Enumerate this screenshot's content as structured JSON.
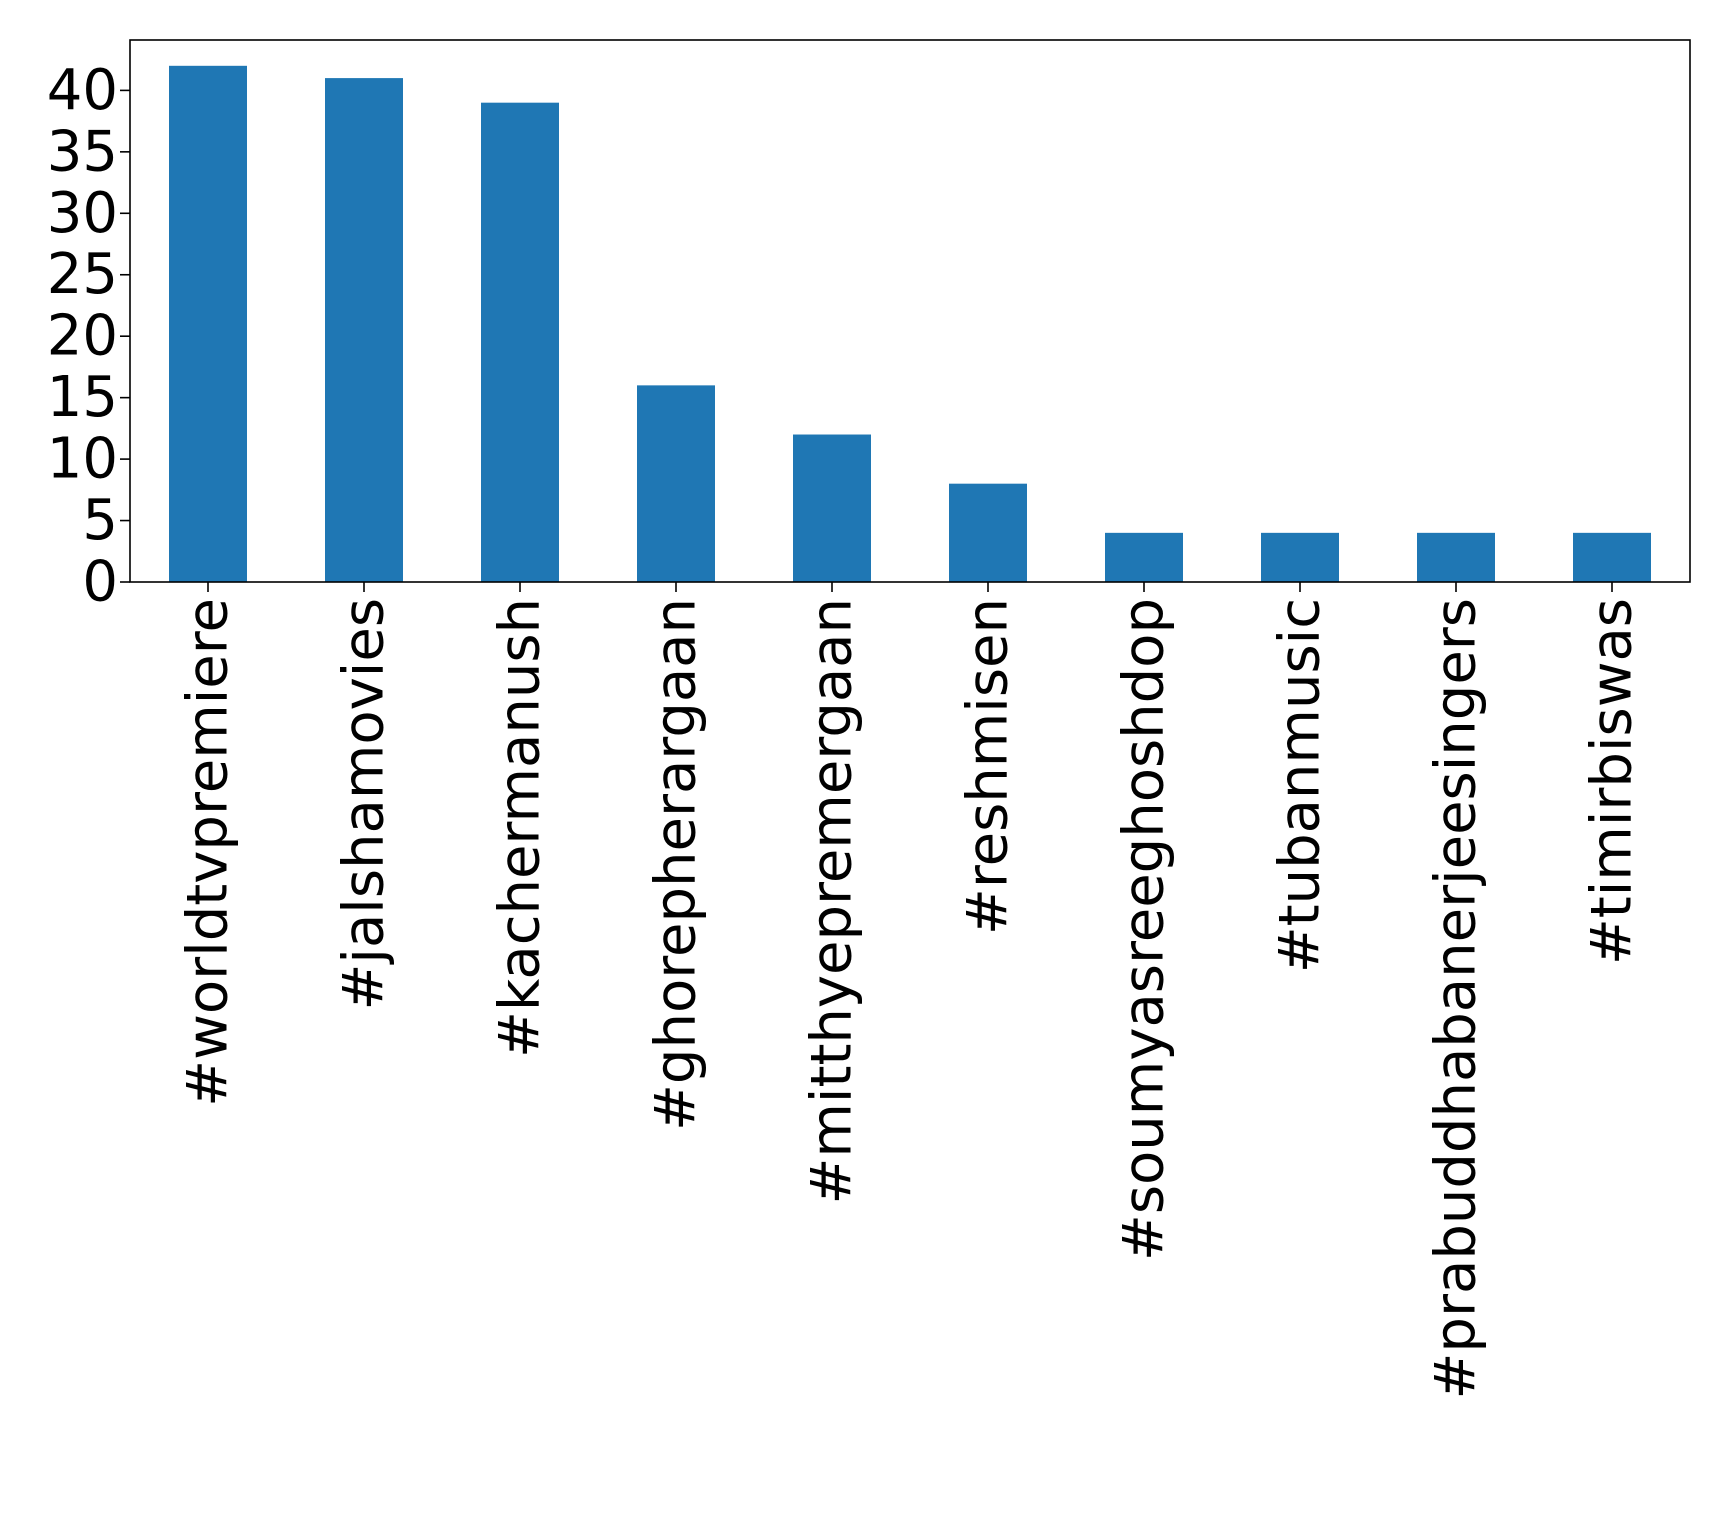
{
  "chart_data": {
    "type": "bar",
    "title": "",
    "xlabel": "",
    "ylabel": "",
    "categories": [
      "#worldtvpremiere",
      "#jalshamovies",
      "#kachermanush",
      "#ghorepherargaan",
      "#mitthyepremergaan",
      "#reshmisen",
      "#soumyasreeghoshdop",
      "#tubanmusic",
      "#prabuddhabanerjeesingers",
      "#timirbiswas"
    ],
    "values": [
      42,
      41,
      39,
      16,
      12,
      8,
      4,
      4,
      4,
      4
    ],
    "ylim": [
      0,
      44.1
    ],
    "yticks": [
      0,
      5,
      10,
      15,
      20,
      25,
      30,
      35,
      40
    ],
    "ytick_labels": [
      "0",
      "5",
      "10",
      "15",
      "20",
      "25",
      "30",
      "35",
      "40"
    ],
    "bar_color": "#1f77b4",
    "grid": false,
    "legend": "none"
  }
}
